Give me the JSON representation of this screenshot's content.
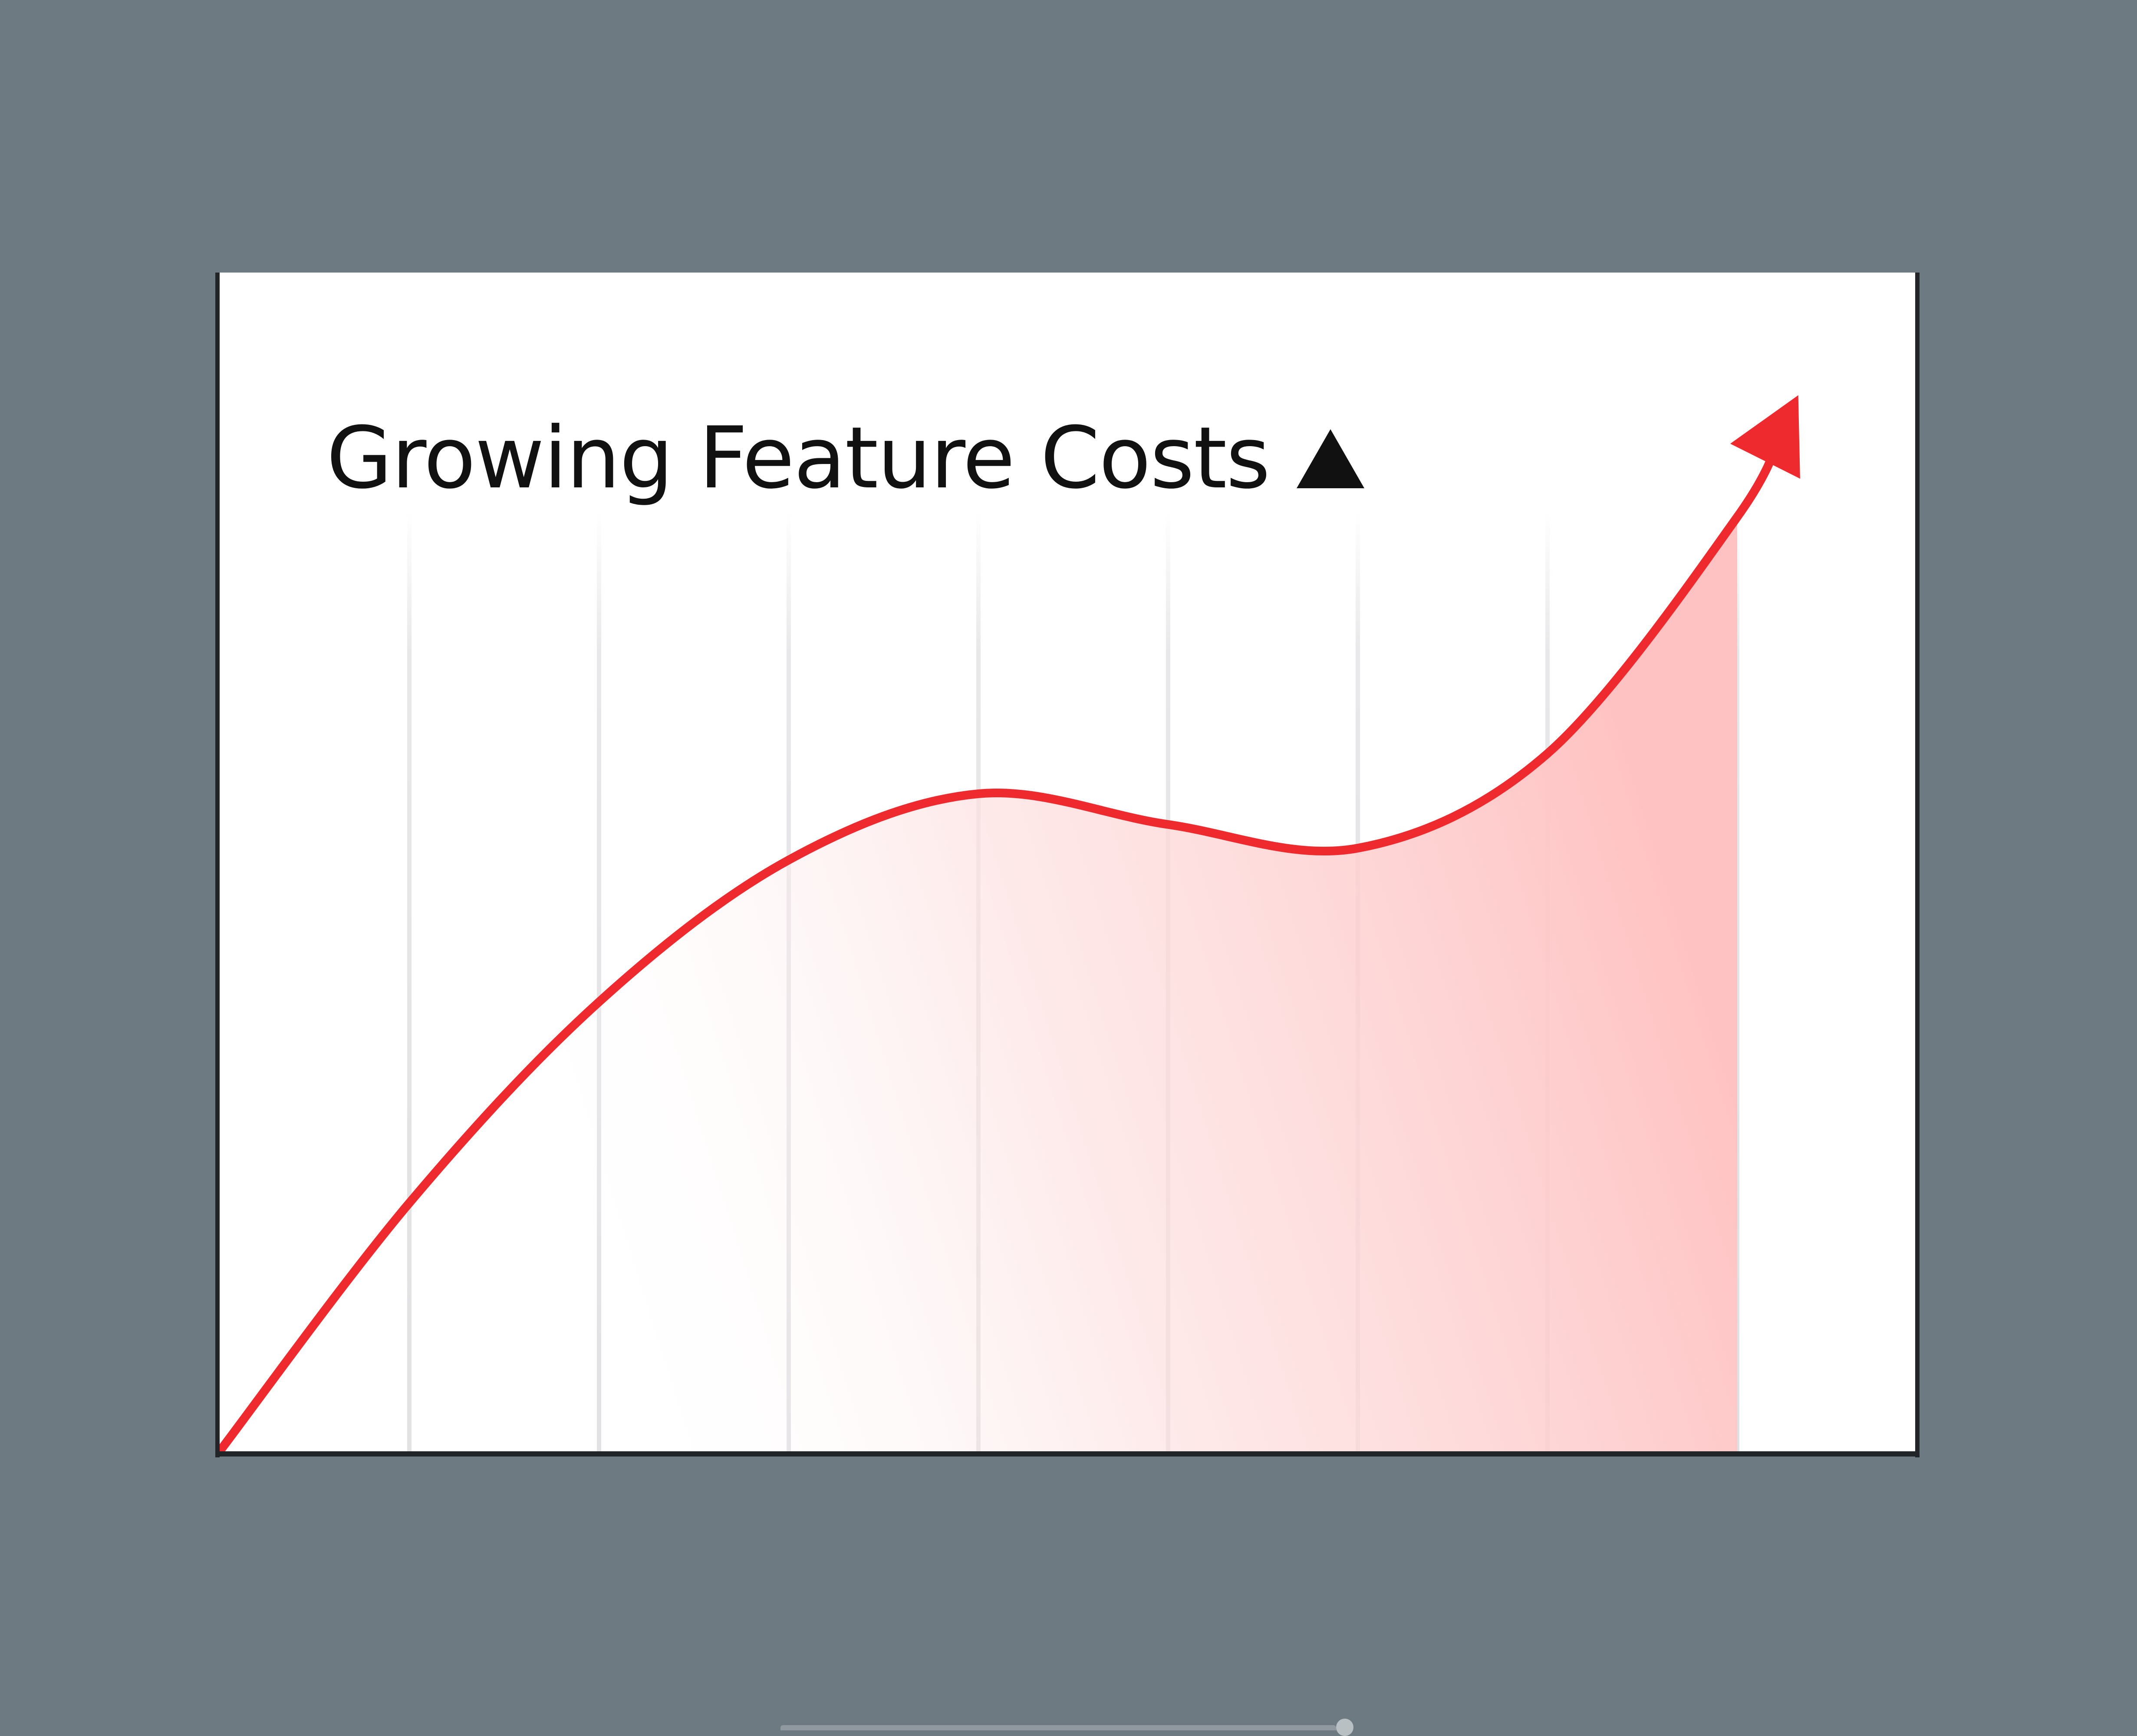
{
  "chart_data": {
    "type": "area",
    "title": "Growing Feature Costs",
    "title_icon": "up-triangle-icon",
    "xlabel": "",
    "ylabel": "",
    "x": [
      0,
      1,
      2,
      3,
      4,
      5,
      6,
      7,
      8
    ],
    "xlim": [
      0,
      8.25
    ],
    "ylim": [
      0,
      7
    ],
    "grid": "vertical",
    "legend": "none",
    "series": [
      {
        "values": [
          0,
          1.05,
          1.9,
          2.5,
          2.78,
          2.65,
          2.55,
          2.95,
          3.95
        ],
        "end_arrow_value": 4.35,
        "color": "#ee2a2e",
        "fill_color": "#ffc2c2"
      }
    ]
  },
  "colors": {
    "background": "#6e7a82",
    "card": "#ffffff",
    "border": "#222528",
    "line": "#ee2a2e",
    "fill": "#ffc2c2",
    "grid": "#e8e8ea",
    "title": "#111111"
  }
}
